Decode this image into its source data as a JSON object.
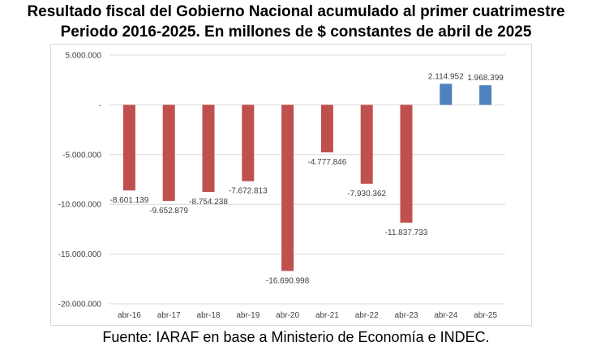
{
  "title_line1": "Resultado fiscal del Gobierno Nacional acumulado al primer cuatrimestre",
  "title_line2": "Periodo 2016-2025. En millones de $ constantes de abril de 2025",
  "source": "Fuente: IARAF en base a Ministerio de Economía e INDEC.",
  "colors": {
    "negative": "#c0504d",
    "positive": "#4f81bd",
    "grid": "#d9d9d9",
    "text": "#404040"
  },
  "chart_data": {
    "type": "bar",
    "categories": [
      "abr-16",
      "abr-17",
      "abr-18",
      "abr-19",
      "abr-20",
      "abr-21",
      "abr-22",
      "abr-23",
      "abr-24",
      "abr-25"
    ],
    "values": [
      -8601139,
      -9652879,
      -8754238,
      -7672813,
      -16690998,
      -4777846,
      -7930362,
      -11837733,
      2114952,
      1968399
    ],
    "value_labels": [
      "-8.601.139",
      "-9.652.879",
      "-8.754.238",
      "-7.672.813",
      "-16.690.998",
      "-4.777.846",
      "-7.930.362",
      "-11.837.733",
      "2.114.952",
      "1.968.399"
    ],
    "yticks": [
      5000000,
      0,
      -5000000,
      -10000000,
      -15000000,
      -20000000
    ],
    "ytick_labels": [
      "5.000.000",
      "-",
      "-5.000.000",
      "-10.000.000",
      "-15.000.000",
      "-20.000.000"
    ],
    "ylim": [
      -20000000,
      5000000
    ],
    "grid": true,
    "legend": "none"
  }
}
